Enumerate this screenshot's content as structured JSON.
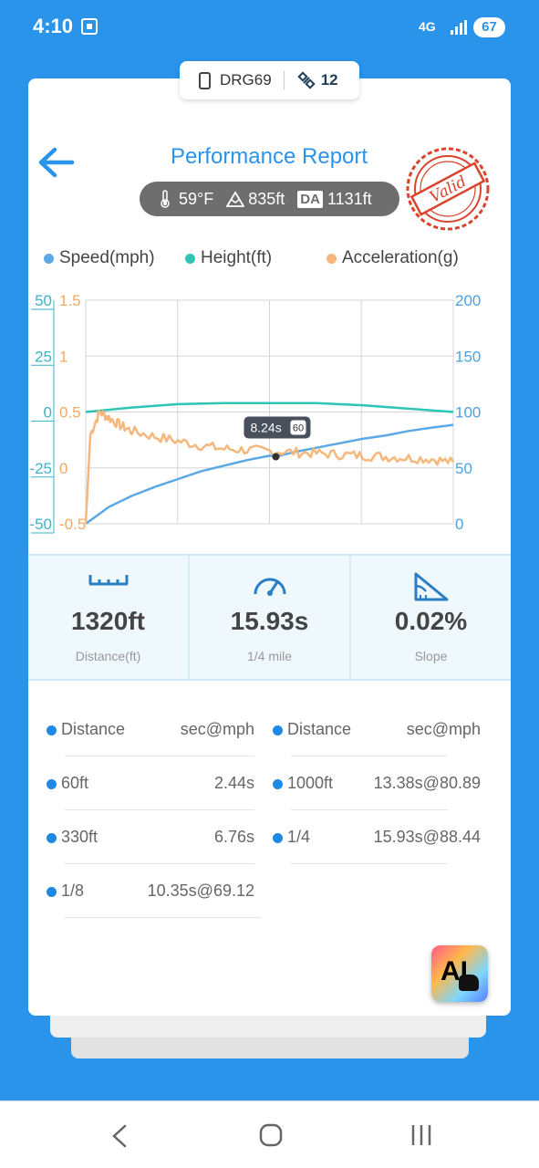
{
  "status_bar": {
    "time": "4:10",
    "network": "4G",
    "battery": "67"
  },
  "device": {
    "name": "DRG69",
    "satellites": "12"
  },
  "header": {
    "title": "Performance Report",
    "stamp_text": "Valid"
  },
  "conditions": {
    "temperature": "59°F",
    "altitude": "835ft",
    "da_label": "DA",
    "density_altitude": "1131ft"
  },
  "legend": [
    {
      "label": "Speed(mph)",
      "color": "#5aa9e6"
    },
    {
      "label": "Height(ft)",
      "color": "#2ec4b6"
    },
    {
      "label": "Acceleration(g)",
      "color": "#f5b77c"
    }
  ],
  "chart_data": {
    "type": "line",
    "axes": {
      "left_height_ticks": [
        "50",
        "25",
        "0",
        "-25",
        "-50"
      ],
      "left_accel_ticks": [
        "1.5",
        "1",
        "0.5",
        "0",
        "-0.5"
      ],
      "right_speed_ticks": [
        "200",
        "150",
        "100",
        "50",
        "0"
      ],
      "speed_range": [
        0,
        200
      ],
      "height_range": [
        -50,
        50
      ],
      "accel_range": [
        -0.5,
        1.5
      ]
    },
    "x_range": [
      0,
      15.93
    ],
    "series": [
      {
        "name": "Speed(mph)",
        "axis": "speed",
        "color": "#5aa9e6",
        "x": [
          0,
          1,
          2,
          3,
          4,
          5,
          6,
          7,
          8,
          8.24,
          9,
          10,
          11,
          12,
          13,
          14,
          15,
          15.93
        ],
        "y": [
          0,
          15,
          25,
          33,
          40,
          47,
          52,
          57,
          61,
          60,
          64,
          68,
          72,
          76,
          79,
          83,
          86,
          88.44
        ]
      },
      {
        "name": "Height(ft)",
        "axis": "height",
        "color": "#2ec4b6",
        "x": [
          0,
          2,
          4,
          6,
          8,
          10,
          12,
          14,
          15.93
        ],
        "y": [
          0,
          2,
          3.5,
          4,
          4,
          4,
          3,
          1.5,
          0
        ]
      },
      {
        "name": "Acceleration(g)",
        "axis": "accel",
        "color": "#f5b77c",
        "x": [
          0,
          0.2,
          0.6,
          1,
          1.5,
          2,
          3,
          4,
          5,
          6,
          7,
          8,
          9,
          10,
          11,
          12,
          13,
          14,
          15,
          15.93
        ],
        "y": [
          -0.5,
          0.3,
          0.5,
          0.45,
          0.38,
          0.33,
          0.28,
          0.24,
          0.2,
          0.17,
          0.16,
          0.15,
          0.14,
          0.13,
          0.12,
          0.11,
          0.1,
          0.09,
          0.08,
          0.05
        ]
      }
    ],
    "tooltip": {
      "time": "8.24s",
      "speed": "60",
      "x": 8.24
    },
    "grid": true
  },
  "metrics": [
    {
      "icon": "ruler-icon",
      "value": "1320ft",
      "label": "Distance(ft)"
    },
    {
      "icon": "speedometer-icon",
      "value": "15.93s",
      "label": "1/4 mile"
    },
    {
      "icon": "slope-icon",
      "value": "0.02%",
      "label": "Slope"
    }
  ],
  "splits": {
    "headers": [
      "Distance",
      "sec@mph",
      "Distance",
      "sec@mph"
    ],
    "rows": [
      {
        "distance": "60ft",
        "value": "2.44s"
      },
      {
        "distance": "1000ft",
        "value": "13.38s@80.89"
      },
      {
        "distance": "330ft",
        "value": "6.76s"
      },
      {
        "distance": "1/4",
        "value": "15.93s@88.44"
      },
      {
        "distance": "1/8",
        "value": "10.35s@69.12"
      }
    ]
  },
  "ai_button": {
    "label": "AI"
  }
}
